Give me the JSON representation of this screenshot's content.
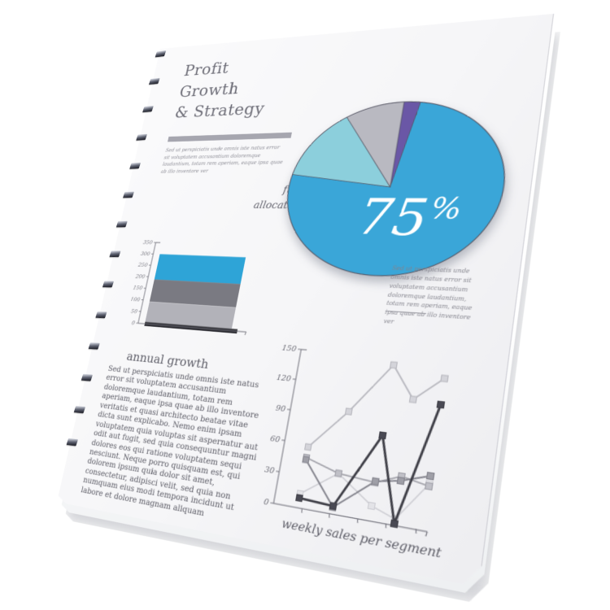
{
  "binding": {
    "teeth": 14
  },
  "page": {
    "title_lines": [
      "Profit",
      "Growth",
      "& Strategy"
    ],
    "intro_text": "Sed ut perspiciatis unde omnis iste natus error sit voluptatem accusantium doloremque laudantium, totam rem aperiam, eaque ipsa quae ab illo inventore ver",
    "fund_label": "fund\nallocation",
    "pie_note": "Sed ut perspiciatis unde omnis iste natus error sit voluptatem accusantium doloremque laudantium, totam rem aperiam, eaque ipsa quae ab illo inventore ver",
    "annual_heading": "annual growth",
    "annual_text": "Sed ut perspiciatis unde omnis iste natus error sit voluptatem accusantium doloremque laudantium, totam rem aperiam, eaque ipsa quae ab illo inventore veritatis et quasi architecto beatae vitae dicta sunt explicabo. Nemo enim ipsam voluptatem quia voluptas sit aspernatur aut odit aut fugit, sed quia consequuntur magni dolores eos qui ratione voluptatem sequi nesciunt. Neque porro quisquam est, qui dolorem ipsum quia dolor sit amet, consectetur, adipisci velit, sed quia non numquam eius modi tempora incidunt ut labore et dolore magnam aliquam"
  },
  "chart_data": [
    {
      "type": "pie",
      "caption": "fund allocation",
      "center_label": "75",
      "center_label_suffix": "%",
      "center_label_color": "#ffffff",
      "outline_color": "#565664",
      "slices_clockwise_from_top": [
        {
          "value": 2.5,
          "color": "#6a57a6"
        },
        {
          "value": 75,
          "color": "#3aa6d8"
        },
        {
          "value": 13.5,
          "color": "#8ccfdc"
        },
        {
          "value": 9,
          "color": "#b9b9c1"
        }
      ]
    },
    {
      "type": "stacked-bar",
      "ylim": [
        0,
        350
      ],
      "yticks": [
        350,
        300,
        250,
        200,
        150,
        100,
        50,
        0
      ],
      "axis_color": "#6e6e78",
      "tick_label_color": "#75757f",
      "segments_bottom_up": [
        {
          "from": 0,
          "to": 8,
          "color": "#2d2d33"
        },
        {
          "from": 8,
          "to": 95,
          "color": "#b2b2b9"
        },
        {
          "from": 95,
          "to": 190,
          "color": "#7a7a82"
        },
        {
          "from": 190,
          "to": 300,
          "color": "#2ea4d7"
        }
      ]
    },
    {
      "type": "line",
      "xlabel": "weekly sales per segment",
      "ylim": [
        0,
        150
      ],
      "yticks": [
        150,
        120,
        90,
        60,
        30,
        0
      ],
      "axis_color": "#6e6e78",
      "tick_label_color": "#6a6a74",
      "xlabel_color": "#5a5a64",
      "series": [
        {
          "color": "#b8b8bf",
          "marker": "#d4d4da",
          "width": 1.7,
          "values": [
            57,
            95,
            143,
            113,
            135
          ]
        },
        {
          "color": "#cdcdd3",
          "marker": "#e3e3e7",
          "width": 1.4,
          "values": [
            13,
            37,
            13,
            5,
            40
          ]
        },
        {
          "color": "#a2a2aa",
          "marker": "#c0c0c7",
          "width": 1.6,
          "values": [
            47,
            37,
            34,
            43,
            38
          ]
        },
        {
          "color": "#84848d",
          "marker": "#9f9fa7",
          "width": 1.8,
          "values": [
            45,
            6,
            35,
            39,
            47
          ]
        },
        {
          "color": "#3e3e46",
          "marker": "#4a4a54",
          "width": 2.6,
          "values": [
            9,
            7,
            77,
            1,
            111
          ]
        }
      ]
    }
  ]
}
